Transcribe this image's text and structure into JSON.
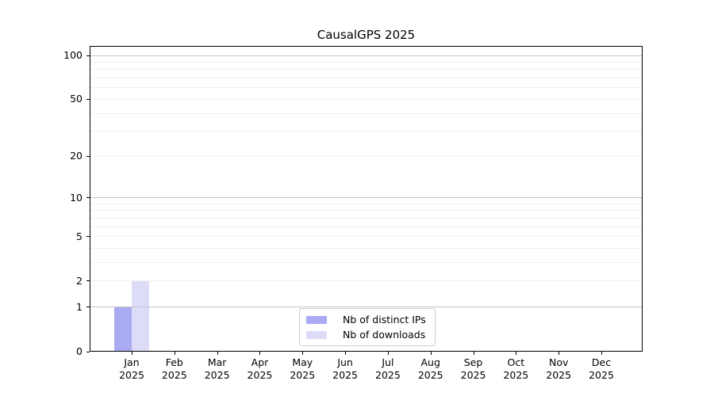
{
  "chart_data": {
    "type": "bar",
    "title": "CausalGPS 2025",
    "categories": [
      {
        "month": "Jan",
        "year": "2025"
      },
      {
        "month": "Feb",
        "year": "2025"
      },
      {
        "month": "Mar",
        "year": "2025"
      },
      {
        "month": "Apr",
        "year": "2025"
      },
      {
        "month": "May",
        "year": "2025"
      },
      {
        "month": "Jun",
        "year": "2025"
      },
      {
        "month": "Jul",
        "year": "2025"
      },
      {
        "month": "Aug",
        "year": "2025"
      },
      {
        "month": "Sep",
        "year": "2025"
      },
      {
        "month": "Oct",
        "year": "2025"
      },
      {
        "month": "Nov",
        "year": "2025"
      },
      {
        "month": "Dec",
        "year": "2025"
      }
    ],
    "series": [
      {
        "name": "Nb of distinct IPs",
        "color": "#aaaaf2",
        "values": [
          1,
          0,
          0,
          0,
          0,
          0,
          0,
          0,
          0,
          0,
          0,
          0
        ]
      },
      {
        "name": "Nb of downloads",
        "color": "#dcdcf9",
        "values": [
          2,
          0,
          0,
          0,
          0,
          0,
          0,
          0,
          0,
          0,
          0,
          0
        ]
      }
    ],
    "y_axis": {
      "scale": "log1p",
      "tick_labels": [
        "0",
        "1",
        "2",
        "5",
        "10",
        "20",
        "50",
        "100"
      ],
      "tick_values": [
        0,
        1,
        2,
        5,
        10,
        20,
        50,
        100
      ],
      "major_gridlines": [
        1,
        10,
        100
      ],
      "minor_gridlines": [
        2,
        3,
        4,
        5,
        6,
        7,
        8,
        9,
        20,
        30,
        40,
        50,
        60,
        70,
        80,
        90
      ],
      "ylim": [
        0,
        117
      ]
    },
    "legend_position": "bottom-center",
    "grid": true
  },
  "colors": {
    "background": "#ffffff",
    "axis": "#000000",
    "grid_major": "#c6c6c6",
    "grid_minor": "#f0f0f0",
    "legend_border": "#cccccc",
    "bar_distinct_ips": "#aaaaf2",
    "bar_downloads": "#dcdcf9"
  }
}
